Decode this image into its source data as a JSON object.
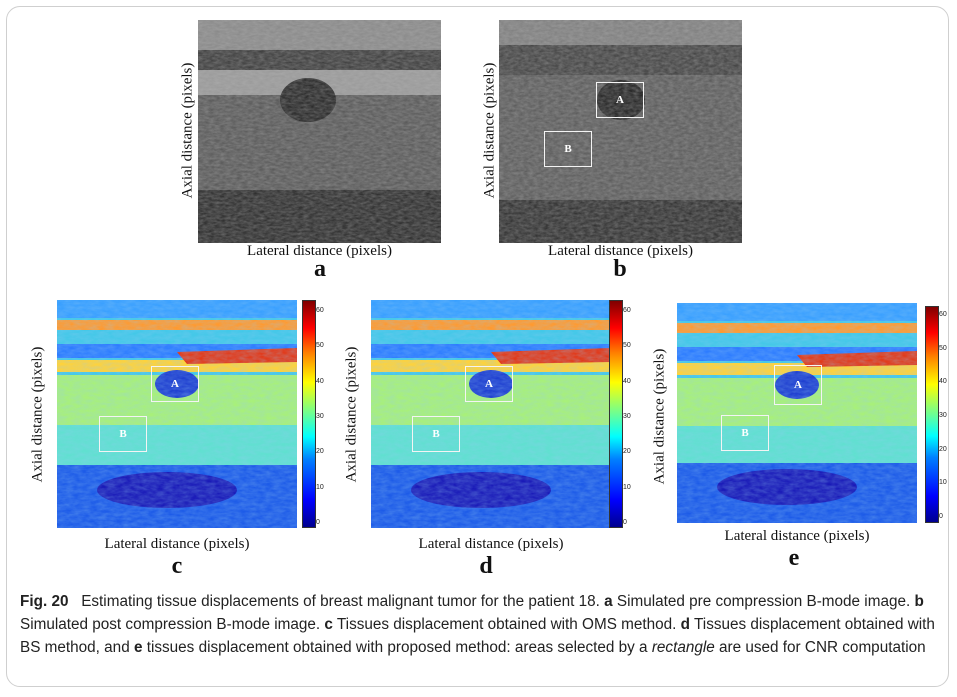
{
  "panels": {
    "a": {
      "label": "a",
      "xlabel": "Lateral distance (pixels)",
      "ylabel": "Axial distance (pixels)"
    },
    "b": {
      "label": "b",
      "xlabel": "Lateral distance (pixels)",
      "ylabel": "Axial distance (pixels)",
      "roi_a": "A",
      "roi_b": "B"
    },
    "c": {
      "label": "c",
      "xlabel": "Lateral distance (pixels)",
      "ylabel": "Axial distance (pixels)",
      "roi_a": "A",
      "roi_b": "B"
    },
    "d": {
      "label": "d",
      "xlabel": "Lateral distance (pixels)",
      "ylabel": "Axial distance (pixels)",
      "roi_a": "A",
      "roi_b": "B"
    },
    "e": {
      "label": "e",
      "xlabel": "Lateral distance (pixels)",
      "ylabel": "Axial distance (pixels)",
      "roi_a": "A",
      "roi_b": "B"
    }
  },
  "colorbar_ticks": [
    "0",
    "10",
    "20",
    "30",
    "40",
    "50",
    "60"
  ],
  "colors": {
    "jet_low": "#00008f",
    "jet_high": "#800000"
  },
  "caption": {
    "fig_label": "Fig. 20",
    "title": "Estimating tissue displacements of breast malignant tumor for the patient 18.",
    "a_label": "a",
    "a_text": "Simulated pre compression B-mode image.",
    "b_label": "b",
    "b_text": "Simulated post compression B-mode image.",
    "c_label": "c",
    "c_text": "Tissues displacement obtained with OMS method.",
    "d_label": "d",
    "d_text": "Tissues displacement obtained with BS method, and",
    "e_label": "e",
    "e_text": "tissues displacement obtained with proposed method: areas selected by a",
    "rect_word": "rectangle",
    "tail": "are used for CNR computation"
  }
}
